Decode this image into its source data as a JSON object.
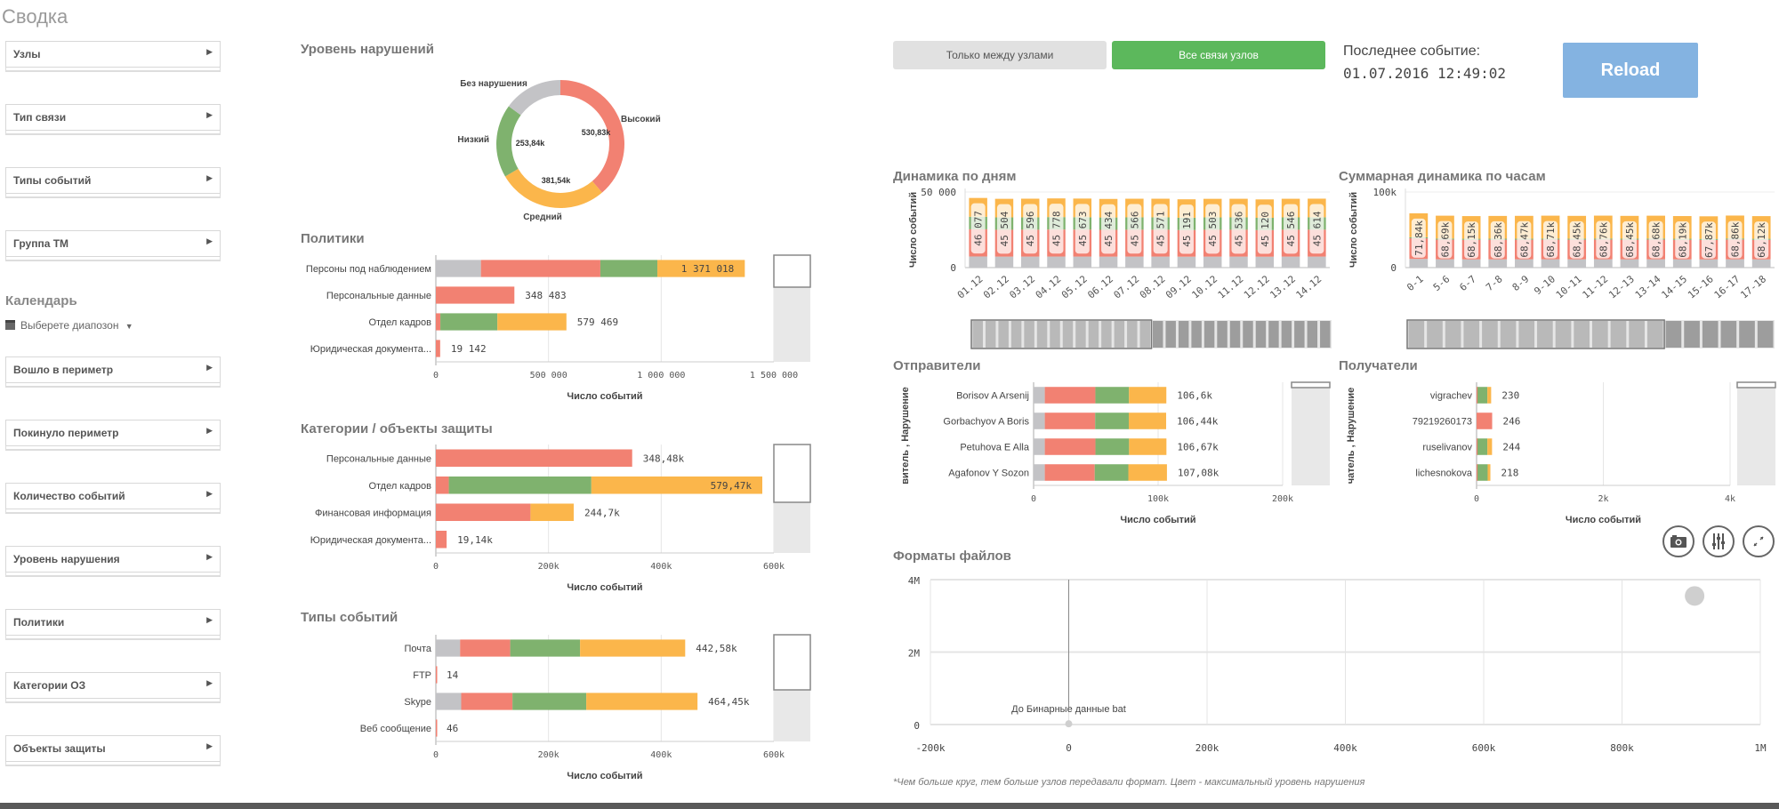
{
  "app": {
    "title": "Сводка"
  },
  "sidebar": {
    "filters_top": [
      "Узлы",
      "Тип связи",
      "Типы событий",
      "Группа ТМ"
    ],
    "calendar_label": "Календарь",
    "calendar_picker": "Выберете диапозон",
    "filters_bottom": [
      "Вошло в периметр",
      "Покинуло периметр",
      "Количество событий",
      "Уровень нарушения",
      "Политики",
      "Категории ОЗ",
      "Объекты защиты"
    ]
  },
  "colors": {
    "none": "#c3c3c6",
    "high": "#f28172",
    "low": "#7fb26e",
    "medium": "#fbb64b",
    "accent_green": "#5cb85c",
    "reload": "#84b3e1"
  },
  "toolbar": {
    "toggle_between": "Только между узлами",
    "toggle_all": "Все связи узлов",
    "last_event_label": "Последнее событие:",
    "last_event_value": "01.07.2016 12:49:02",
    "reload_label": "Reload"
  },
  "chart_data": [
    {
      "id": "violations",
      "type": "pie",
      "title": "Уровень нарушений",
      "slices": [
        {
          "name": "Высокий",
          "value": 530830,
          "label": "530,83k",
          "color": "#f28172"
        },
        {
          "name": "Средний",
          "value": 381540,
          "label": "381,54k",
          "color": "#fbb64b"
        },
        {
          "name": "Низкий",
          "value": 253840,
          "label": "253,84k",
          "color": "#7fb26e"
        },
        {
          "name": "Без нарушения",
          "value": 205000,
          "label": "",
          "color": "#c3c3c6"
        }
      ]
    },
    {
      "id": "policies",
      "type": "bar",
      "title": "Политики",
      "xlabel": "Число событий",
      "xlim": [
        0,
        1500000
      ],
      "ticks": [
        "0",
        "500 000",
        "1 000 000",
        "1 500 000"
      ],
      "tick_values": [
        0,
        500000,
        1000000,
        1500000
      ],
      "categories": [
        "Персоны под наблюдением",
        "Персональные данные",
        "Отдел кадров",
        "Юридическая документа..."
      ],
      "totals_label": [
        "1 371 018",
        "348 483",
        "579 469",
        "19 142"
      ],
      "label_inside": [
        true,
        false,
        false,
        false
      ],
      "series": [
        {
          "name": "Без нарушения",
          "values": [
            200000,
            0,
            0,
            0
          ]
        },
        {
          "name": "Высокий",
          "values": [
            530000,
            348483,
            20000,
            19142
          ]
        },
        {
          "name": "Низкий",
          "values": [
            253000,
            0,
            253000,
            0
          ]
        },
        {
          "name": "Средний",
          "values": [
            388018,
            0,
            306469,
            0
          ]
        }
      ]
    },
    {
      "id": "categories",
      "type": "bar",
      "title": "Категории / объекты защиты",
      "xlabel": "Число событий",
      "xlim": [
        0,
        600000
      ],
      "ticks": [
        "0",
        "200k",
        "400k",
        "600k"
      ],
      "tick_values": [
        0,
        200000,
        400000,
        600000
      ],
      "categories": [
        "Персональные данные",
        "Отдел кадров",
        "Финансовая информация",
        "Юридическая документа..."
      ],
      "totals_label": [
        "348,48k",
        "579,47k",
        "244,7k",
        "19,14k"
      ],
      "label_inside": [
        false,
        true,
        false,
        false
      ],
      "series": [
        {
          "name": "Без нарушения",
          "values": [
            0,
            0,
            0,
            0
          ]
        },
        {
          "name": "Высокий",
          "values": [
            348480,
            23000,
            168000,
            19140
          ]
        },
        {
          "name": "Низкий",
          "values": [
            0,
            253000,
            0,
            0
          ]
        },
        {
          "name": "Средний",
          "values": [
            0,
            303470,
            76700,
            0
          ]
        }
      ]
    },
    {
      "id": "event_types",
      "type": "bar",
      "title": "Типы событий",
      "xlabel": "Число событий",
      "xlim": [
        0,
        600000
      ],
      "ticks": [
        "0",
        "200k",
        "400k",
        "600k"
      ],
      "tick_values": [
        0,
        200000,
        400000,
        600000
      ],
      "categories": [
        "Почта",
        "FTP",
        "Skype",
        "Веб сообщение"
      ],
      "totals_label": [
        "442,58k",
        "14",
        "464,45k",
        "46"
      ],
      "label_inside": [
        false,
        false,
        false,
        false
      ],
      "series": [
        {
          "name": "Без нарушения",
          "values": [
            43000,
            0,
            45000,
            0
          ]
        },
        {
          "name": "Высокий",
          "values": [
            89000,
            14,
            91000,
            46
          ]
        },
        {
          "name": "Низкий",
          "values": [
            124000,
            0,
            131000,
            0
          ]
        },
        {
          "name": "Средний",
          "values": [
            186580,
            0,
            197450,
            0
          ]
        }
      ]
    },
    {
      "id": "daily",
      "type": "bar",
      "title": "Динамика по дням",
      "ylabel": "Число событий",
      "ylim": [
        0,
        50000
      ],
      "ticks": [
        "0",
        "50 000"
      ],
      "tick_values": [
        0,
        50000
      ],
      "categories": [
        "01.12",
        "02.12",
        "03.12",
        "04.12",
        "05.12",
        "06.12",
        "07.12",
        "08.12",
        "09.12",
        "10.12",
        "11.12",
        "12.12",
        "13.12",
        "14.12"
      ],
      "totals": [
        46077,
        45504,
        45596,
        45778,
        45673,
        45434,
        45566,
        45571,
        45191,
        45503,
        45536,
        45120,
        45546,
        45614
      ],
      "totals_label": [
        "46 077",
        "45 504",
        "45 596",
        "45 778",
        "45 673",
        "45 434",
        "45 566",
        "45 571",
        "45 191",
        "45 503",
        "45 536",
        "45 120",
        "45 546",
        "45 614"
      ],
      "share": {
        "none": 0.16,
        "high": 0.39,
        "low": 0.18,
        "medium": 0.27
      }
    },
    {
      "id": "hourly",
      "type": "bar",
      "title": "Суммарная динамика по часам",
      "ylabel": "Число событий",
      "ylim": [
        0,
        100000
      ],
      "ticks": [
        "0",
        "100k"
      ],
      "tick_values": [
        0,
        100000
      ],
      "categories": [
        "0-1",
        "5-6",
        "6-7",
        "7-8",
        "8-9",
        "9-10",
        "10-11",
        "11-12",
        "12-13",
        "13-14",
        "14-15",
        "15-16",
        "16-17",
        "17-18"
      ],
      "totals": [
        71840,
        68690,
        68150,
        68360,
        68470,
        68710,
        68450,
        68760,
        68450,
        68680,
        68190,
        67870,
        68860,
        68120
      ],
      "totals_label": [
        "71,84k",
        "68,69k",
        "68,15k",
        "68,36k",
        "68,47k",
        "68,71k",
        "68,45k",
        "68,76k",
        "68,45k",
        "68,68k",
        "68,19k",
        "67,87k",
        "68,86k",
        "68,12k"
      ],
      "share": {
        "none": 0.16,
        "high": 0.38,
        "low": 0.02,
        "medium": 0.44
      }
    },
    {
      "id": "senders",
      "type": "bar",
      "title": "Отправители",
      "ylabel": "витель , Нарушение",
      "xlabel": "Число событий",
      "xlim": [
        0,
        200000
      ],
      "ticks": [
        "0",
        "100k",
        "200k"
      ],
      "tick_values": [
        0,
        100000,
        200000
      ],
      "categories": [
        "Borisov A Arsenij",
        "Gorbachyov A Boris",
        "Petuhova E Alla",
        "Agafonov Y Sozon"
      ],
      "totals_label": [
        "106,6k",
        "106,44k",
        "106,67k",
        "107,08k"
      ],
      "label_inside": [
        false,
        false,
        false,
        false
      ],
      "series": [
        {
          "name": "Без нарушения",
          "values": [
            9000,
            9000,
            9000,
            9000
          ]
        },
        {
          "name": "Высокий",
          "values": [
            40600,
            40440,
            40670,
            40080
          ]
        },
        {
          "name": "Низкий",
          "values": [
            27000,
            27000,
            27000,
            27000
          ]
        },
        {
          "name": "Средний",
          "values": [
            30000,
            30000,
            30000,
            31000
          ]
        }
      ]
    },
    {
      "id": "recipients",
      "type": "bar",
      "title": "Получатели",
      "ylabel": "чатель , Нарушение",
      "xlabel": "Число событий",
      "xlim": [
        0,
        4000
      ],
      "ticks": [
        "0",
        "2k",
        "4k"
      ],
      "tick_values": [
        0,
        2000,
        4000
      ],
      "categories": [
        "vigrachev",
        "79219260173",
        "ruselivanov",
        "lichesnokova"
      ],
      "totals_label": [
        "230",
        "246",
        "244",
        "218"
      ],
      "label_inside": [
        false,
        false,
        false,
        false
      ],
      "series": [
        {
          "name": "Без нарушения",
          "values": [
            0,
            0,
            0,
            0
          ]
        },
        {
          "name": "Высокий",
          "values": [
            15,
            246,
            15,
            15
          ]
        },
        {
          "name": "Низкий",
          "values": [
            155,
            0,
            155,
            160
          ]
        },
        {
          "name": "Средний",
          "values": [
            60,
            0,
            74,
            43
          ]
        }
      ]
    },
    {
      "id": "file_formats",
      "type": "scatter",
      "title": "Форматы файлов",
      "xlim": [
        -200000,
        1000000
      ],
      "ylim": [
        0,
        4000000
      ],
      "xticks": [
        "-200k",
        "0",
        "200k",
        "400k",
        "600k",
        "800k",
        "1M"
      ],
      "xtick_values": [
        -200000,
        0,
        200000,
        400000,
        600000,
        800000,
        1000000
      ],
      "yticks": [
        "0",
        "2M",
        "4M"
      ],
      "ytick_values": [
        0,
        2000000,
        4000000
      ],
      "points": [
        {
          "x": 0,
          "y": 20000,
          "label": "До Бинарные данные bat"
        },
        {
          "x": 905000,
          "y": 3550000,
          "label": ""
        }
      ],
      "note": "*Чем больше круг, тем больше узлов передавали формат. Цвет - максимальный уровень нарушения"
    }
  ]
}
